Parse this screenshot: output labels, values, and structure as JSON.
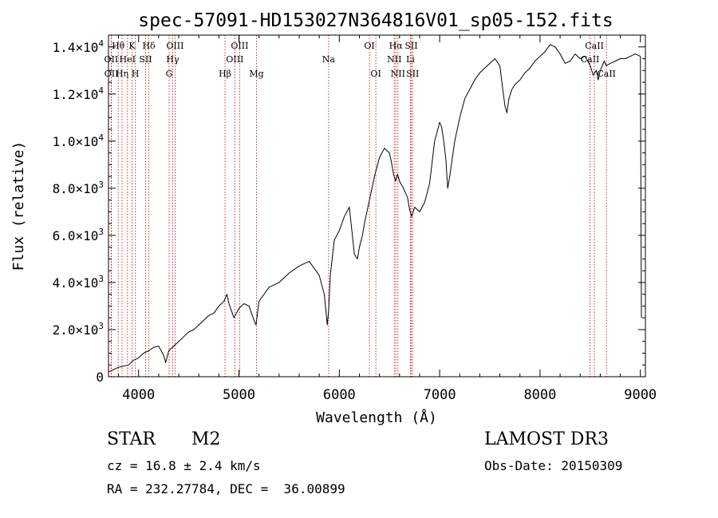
{
  "chart_data": {
    "type": "line",
    "title": "spec-57091-HD153027N364816V01_sp05-152.fits",
    "xlabel": "Wavelength (Å)",
    "ylabel": "Flux (relative)",
    "xlim": [
      3700,
      9050
    ],
    "ylim": [
      0,
      14500
    ],
    "xticks": [
      4000,
      5000,
      6000,
      7000,
      8000,
      9000
    ],
    "xtick_labels": [
      "4000",
      "5000",
      "6000",
      "7000",
      "8000",
      "9000"
    ],
    "yticks": [
      0,
      2000,
      4000,
      6000,
      8000,
      10000,
      12000,
      14000
    ],
    "ytick_labels": [
      {
        "mant": "0",
        "exp": ""
      },
      {
        "mant": "2.0×10",
        "exp": "3"
      },
      {
        "mant": "4.0×10",
        "exp": "3"
      },
      {
        "mant": "6.0×10",
        "exp": "3"
      },
      {
        "mant": "8.0×10",
        "exp": "3"
      },
      {
        "mant": "1.0×10",
        "exp": "4"
      },
      {
        "mant": "1.2×10",
        "exp": "4"
      },
      {
        "mant": "1.4×10",
        "exp": "4"
      }
    ],
    "series": [
      {
        "name": "flux",
        "x": [
          3700,
          3750,
          3800,
          3850,
          3900,
          3950,
          4000,
          4050,
          4100,
          4150,
          4200,
          4250,
          4270,
          4300,
          4350,
          4400,
          4450,
          4500,
          4550,
          4600,
          4650,
          4700,
          4750,
          4800,
          4850,
          4880,
          4900,
          4950,
          5000,
          5050,
          5100,
          5150,
          5170,
          5200,
          5300,
          5400,
          5500,
          5600,
          5700,
          5800,
          5850,
          5880,
          5893,
          5910,
          5950,
          6000,
          6050,
          6100,
          6150,
          6180,
          6200,
          6230,
          6250,
          6300,
          6350,
          6400,
          6450,
          6500,
          6520,
          6540,
          6560,
          6580,
          6600,
          6640,
          6680,
          6700,
          6720,
          6750,
          6800,
          6850,
          6900,
          6950,
          7000,
          7020,
          7040,
          7060,
          7080,
          7100,
          7150,
          7200,
          7250,
          7300,
          7350,
          7400,
          7450,
          7500,
          7550,
          7600,
          7620,
          7650,
          7670,
          7690,
          7720,
          7750,
          7800,
          7850,
          7900,
          7950,
          8000,
          8050,
          8100,
          8150,
          8200,
          8250,
          8300,
          8350,
          8400,
          8450,
          8500,
          8530,
          8560,
          8580,
          8600,
          8640,
          8660,
          8700,
          8750,
          8800,
          8850,
          8900,
          8950,
          9000,
          9010
        ],
        "values": [
          200,
          300,
          400,
          450,
          500,
          700,
          800,
          1000,
          1100,
          1250,
          1300,
          900,
          600,
          1100,
          1300,
          1500,
          1700,
          1900,
          2000,
          2200,
          2400,
          2600,
          2700,
          3000,
          3200,
          3500,
          3100,
          2500,
          2900,
          3100,
          3000,
          2400,
          2200,
          3200,
          3800,
          4000,
          4400,
          4700,
          4900,
          4300,
          3500,
          2200,
          2800,
          4300,
          5800,
          6200,
          6800,
          7200,
          5200,
          5000,
          5500,
          6000,
          6500,
          7500,
          8500,
          9300,
          9700,
          9500,
          9100,
          8600,
          8300,
          8600,
          8300,
          8000,
          7600,
          7100,
          6800,
          7200,
          7000,
          7400,
          8200,
          10000,
          10800,
          10600,
          10000,
          9300,
          8000,
          8500,
          10000,
          11000,
          11800,
          12200,
          12600,
          12900,
          13100,
          13300,
          13500,
          13200,
          12500,
          11500,
          11200,
          11800,
          12200,
          12400,
          12600,
          12900,
          13100,
          13400,
          13600,
          13800,
          14100,
          14000,
          13700,
          13300,
          13400,
          13700,
          13500,
          13600,
          13200,
          12800,
          13000,
          12600,
          13000,
          13400,
          13200,
          13300,
          13400,
          13500,
          13500,
          13600,
          13700,
          13600,
          2500
        ]
      }
    ],
    "spectral_lines": [
      {
        "label": "Hθ",
        "wavelength": 3797,
        "row": 0
      },
      {
        "label": "K",
        "wavelength": 3934,
        "row": 0
      },
      {
        "label": "Hδ",
        "wavelength": 4102,
        "row": 0
      },
      {
        "label": "OIII",
        "wavelength": 4363,
        "row": 0
      },
      {
        "label": "OIII",
        "wavelength": 5007,
        "row": 0
      },
      {
        "label": "OI",
        "wavelength": 6300,
        "row": 0
      },
      {
        "label": "Hα",
        "wavelength": 6563,
        "row": 0
      },
      {
        "label": "SII",
        "wavelength": 6717,
        "row": 0
      },
      {
        "label": "CaII",
        "wavelength": 8542,
        "row": 0
      },
      {
        "label": "OII",
        "wavelength": 3727,
        "row": 1
      },
      {
        "label": "HeI",
        "wavelength": 3889,
        "row": 1
      },
      {
        "label": "SII",
        "wavelength": 4070,
        "row": 1
      },
      {
        "label": "Hγ",
        "wavelength": 4340,
        "row": 1
      },
      {
        "label": "OIII",
        "wavelength": 4959,
        "row": 1
      },
      {
        "label": "Na",
        "wavelength": 5893,
        "row": 1
      },
      {
        "label": "NII",
        "wavelength": 6548,
        "row": 1
      },
      {
        "label": "Li",
        "wavelength": 6708,
        "row": 1
      },
      {
        "label": "CaII",
        "wavelength": 8498,
        "row": 1
      },
      {
        "label": "OII",
        "wavelength": 3729,
        "row": 2
      },
      {
        "label": "Hη",
        "wavelength": 3835,
        "row": 2
      },
      {
        "label": "H",
        "wavelength": 3968,
        "row": 2
      },
      {
        "label": "G",
        "wavelength": 4304,
        "row": 2
      },
      {
        "label": "Hβ",
        "wavelength": 4861,
        "row": 2
      },
      {
        "label": "Mg",
        "wavelength": 5175,
        "row": 2
      },
      {
        "label": "OI",
        "wavelength": 6364,
        "row": 2
      },
      {
        "label": "NII",
        "wavelength": 6584,
        "row": 2
      },
      {
        "label": "SII",
        "wavelength": 6731,
        "row": 2
      },
      {
        "label": "CaII",
        "wavelength": 8662,
        "row": 2
      }
    ],
    "line_color": "#000000",
    "marker_line_color": "#c00000"
  },
  "info": {
    "object_class": "STAR",
    "subclass": "M2",
    "redshift": "cz = 16.8 ± 2.4 km/s",
    "coords": "RA = 232.27784, DEC =  36.00899",
    "survey": "LAMOST DR3",
    "obs_date": "Obs-Date: 20150309"
  }
}
